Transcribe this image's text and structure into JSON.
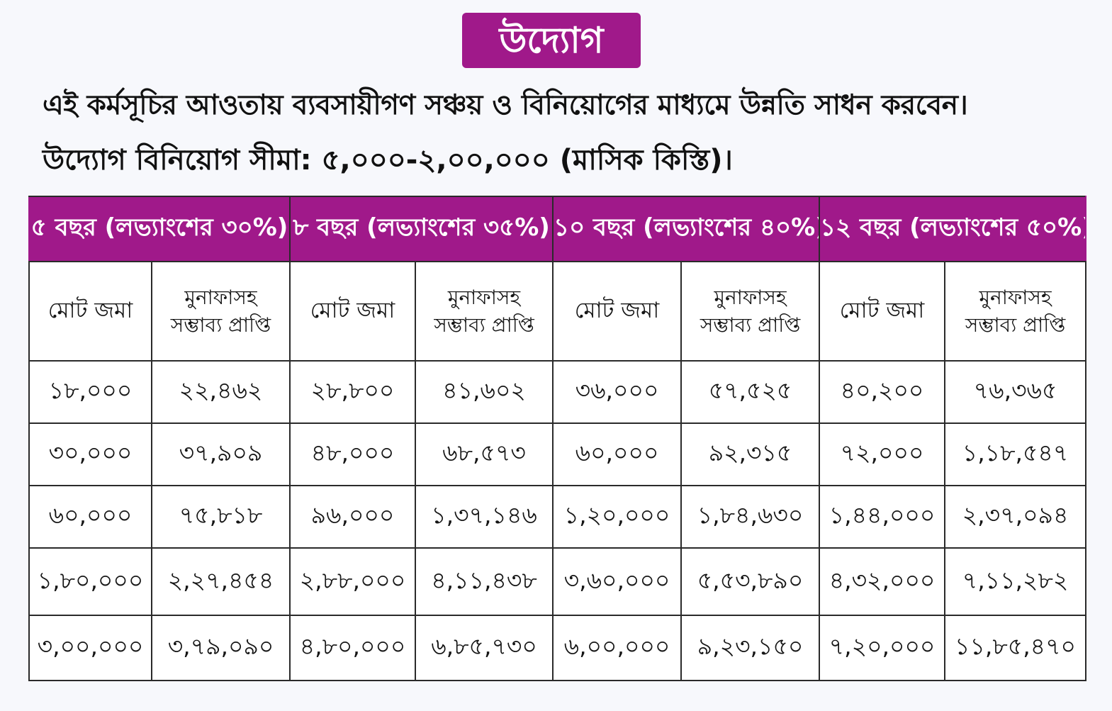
{
  "title": "উদ্যোগ",
  "intro": {
    "line1": "এই কর্মসূচির আওতায় ব্যবসায়ীগণ সঞ্চয় ও বিনিয়োগের মাধ্যমে উন্নতি সাধন করবেন।",
    "line2": "উদ্যোগ বিনিয়োগ সীমা: ৫,০০০-২,০০,০০০ (মাসিক কিস্তি)।"
  },
  "table": {
    "groups": [
      {
        "label": "৫ বছর (লভ্যাংশের ৩০%)",
        "col1": "মোট জমা",
        "col2_line1": "মুনাফাসহ",
        "col2_line2": "সম্ভাব্য প্রাপ্তি"
      },
      {
        "label": "৮ বছর (লভ্যাংশের ৩৫%)",
        "col1": "মোট জমা",
        "col2_line1": "মুনাফাসহ",
        "col2_line2": "সম্ভাব্য প্রাপ্তি"
      },
      {
        "label": "১০ বছর (লভ্যাংশের ৪০%)",
        "col1": "মোট জমা",
        "col2_line1": "মুনাফাসহ",
        "col2_line2": "সম্ভাব্য প্রাপ্তি"
      },
      {
        "label": "১২ বছর (লভ্যাংশের ৫০%)",
        "col1": "মোট জমা",
        "col2_line1": "মুনাফাসহ",
        "col2_line2": "সম্ভাব্য প্রাপ্তি"
      }
    ],
    "rows": [
      [
        "১৮,০০০",
        "২২,৪৬২",
        "২৮,৮০০",
        "৪১,৬০২",
        "৩৬,০০০",
        "৫৭,৫২৫",
        "৪০,২০০",
        "৭৬,৩৬৫"
      ],
      [
        "৩০,০০০",
        "৩৭,৯০৯",
        "৪৮,০০০",
        "৬৮,৫৭৩",
        "৬০,০০০",
        "৯২,৩১৫",
        "৭২,০০০",
        "১,১৮,৫৪৭"
      ],
      [
        "৬০,০০০",
        "৭৫,৮১৮",
        "৯৬,০০০",
        "১,৩৭,১৪৬",
        "১,২০,০০০",
        "১,৮৪,৬৩০",
        "১,৪৪,০০০",
        "২,৩৭,০৯৪"
      ],
      [
        "১,৮০,০০০",
        "২,২৭,৪৫৪",
        "২,৮৮,০০০",
        "৪,১১,৪৩৮",
        "৩,৬০,০০০",
        "৫,৫৩,৮৯০",
        "৪,৩২,০০০",
        "৭,১১,২৮২"
      ],
      [
        "৩,০০,০০০",
        "৩,৭৯,০৯০",
        "৪,৮০,০০০",
        "৬,৮৫,৭৩০",
        "৬,০০,০০০",
        "৯,২৩,১৫০",
        "৭,২০,০০০",
        "১১,৮৫,৪৭০"
      ]
    ]
  },
  "colors": {
    "accent": "#a0198a",
    "border": "#2a2a2a",
    "background": "#f7f8fc"
  }
}
